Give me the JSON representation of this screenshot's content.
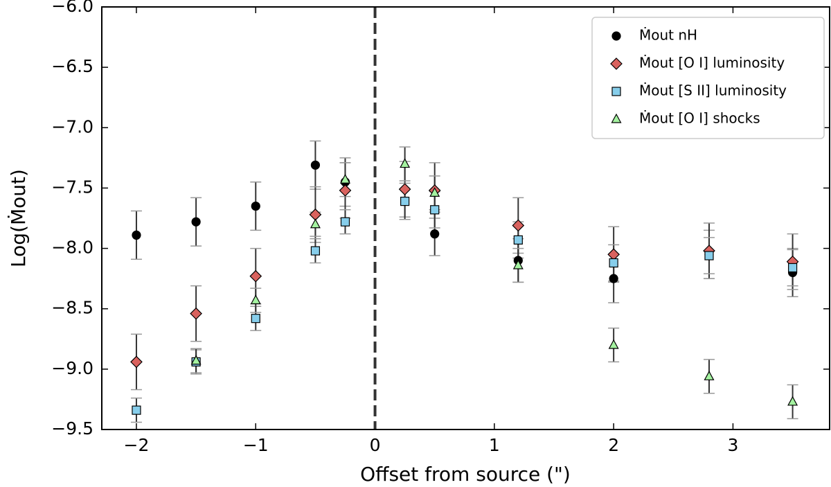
{
  "chart_data": {
    "type": "scatter",
    "xlabel": "Offset from source (\")",
    "ylabel": "Log(Ṁout)",
    "xlim": [
      -2.29,
      3.81
    ],
    "ylim": [
      -9.5,
      -6.0
    ],
    "xticks": [
      {
        "value": -2,
        "label": "−2"
      },
      {
        "value": -1,
        "label": "−1"
      },
      0,
      1,
      2,
      3
    ],
    "yticks": [
      {
        "value": -9.5,
        "label": "−9.5"
      },
      {
        "value": -9.0,
        "label": "−9.0"
      },
      {
        "value": -8.5,
        "label": "−8.5"
      },
      {
        "value": -8.0,
        "label": "−8.0"
      },
      {
        "value": -7.5,
        "label": "−7.5"
      },
      {
        "value": -7.0,
        "label": "−7.0"
      },
      {
        "value": -6.5,
        "label": "−6.5"
      },
      {
        "value": -6.0,
        "label": "−6.0"
      }
    ],
    "reference_line_x": 0,
    "legend": "upper right",
    "series": [
      {
        "name": "Ṁout nH",
        "color": "#000000",
        "marker": "circle",
        "x": [
          -2,
          -1.5,
          -1,
          -0.5,
          -0.25,
          0.5,
          1.2,
          2,
          2.8,
          3.5
        ],
        "values": [
          -7.89,
          -7.78,
          -7.65,
          -7.31,
          -7.45,
          -7.88,
          -8.1,
          -8.25,
          -8.05,
          -8.2
        ],
        "errors": [
          0.2,
          0.2,
          0.2,
          0.2,
          0.2,
          0.18,
          0.18,
          0.2,
          0.2,
          0.2
        ]
      },
      {
        "name": "Ṁout [O I] luminosity",
        "color": "#d9625e",
        "marker": "diamond",
        "x": [
          -2,
          -1.5,
          -1,
          -0.5,
          -0.25,
          0.25,
          0.5,
          1.2,
          2,
          2.8,
          3.5
        ],
        "values": [
          -8.94,
          -8.54,
          -8.23,
          -7.72,
          -7.52,
          -7.51,
          -7.52,
          -7.81,
          -8.05,
          -8.02,
          -8.11
        ],
        "errors": [
          0.23,
          0.23,
          0.23,
          0.23,
          0.23,
          0.23,
          0.23,
          0.23,
          0.23,
          0.23,
          0.23
        ]
      },
      {
        "name": "Ṁout [S II] luminosity",
        "color": "#87ceeb",
        "marker": "square",
        "x": [
          -2,
          -1.5,
          -1,
          -0.5,
          -0.25,
          0.25,
          0.5,
          1.2,
          2,
          2.8,
          3.5
        ],
        "values": [
          -9.34,
          -8.94,
          -8.58,
          -8.02,
          -7.78,
          -7.61,
          -7.68,
          -7.93,
          -8.12,
          -8.06,
          -8.16
        ],
        "errors": [
          0.1,
          0.1,
          0.1,
          0.1,
          0.1,
          0.15,
          0.15,
          0.15,
          0.15,
          0.15,
          0.15
        ]
      },
      {
        "name": "Ṁout [O I] shocks",
        "color": "#a4f2a0",
        "marker": "triangle",
        "x": [
          -1.5,
          -1,
          -0.5,
          -0.25,
          0.25,
          0.5,
          1.2,
          2,
          2.8,
          3.5
        ],
        "values": [
          -8.93,
          -8.43,
          -7.8,
          -7.43,
          -7.3,
          -7.54,
          -8.14,
          -8.8,
          -9.06,
          -9.27
        ],
        "errors": [
          0.1,
          0.1,
          0.1,
          0.14,
          0.14,
          0.14,
          0.14,
          0.14,
          0.14,
          0.14
        ]
      }
    ]
  }
}
